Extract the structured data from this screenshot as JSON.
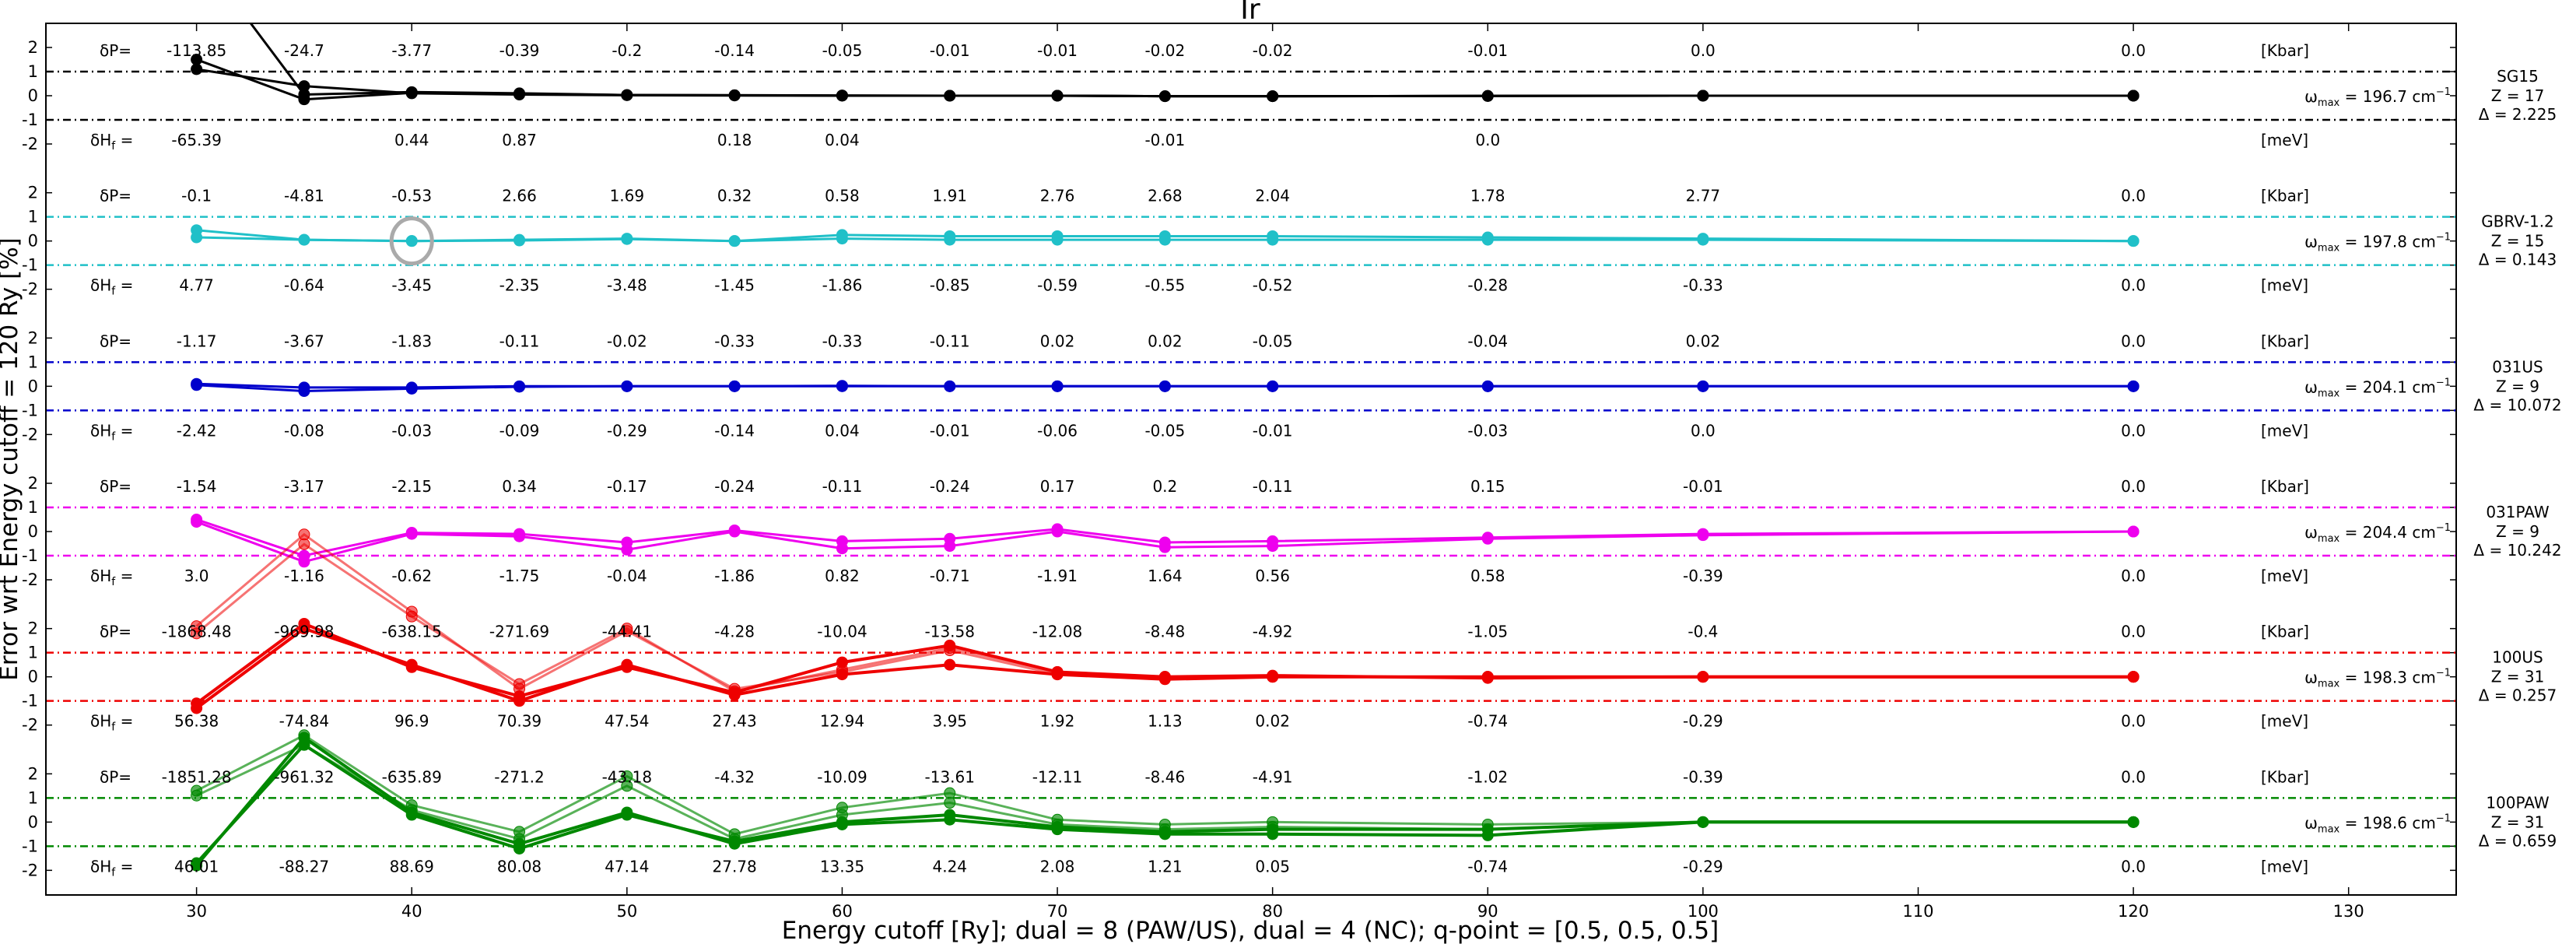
{
  "chart_data": {
    "type": "line",
    "title": "Ir",
    "xlabel": "Energy cutoff [Ry]; dual = 8 (PAW/US), dual = 4 (NC); q-point = [0.5, 0.5, 0.5]",
    "ylabel": "Error wrt Energy cutoff = 120 Ry [%]",
    "xlim": [
      23,
      135
    ],
    "x_ticks": [
      30,
      40,
      50,
      60,
      70,
      80,
      90,
      100,
      110,
      120,
      130
    ],
    "x": [
      30,
      35,
      40,
      45,
      50,
      55,
      60,
      65,
      70,
      75,
      80,
      90,
      100,
      120
    ],
    "panel_ylim": [
      -3,
      3
    ],
    "y_ticks": [
      2,
      1,
      0,
      -1,
      -2
    ],
    "y_tick_labels": [
      "2",
      "1",
      "0",
      "-1",
      "-2"
    ],
    "thresholds": [
      1,
      -1
    ],
    "dp_label": "δP=",
    "dh_label": "δH",
    "dh_sub": "f",
    "dh_eq": " =",
    "dp_unit": "[Kbar]",
    "dh_unit": "[meV]",
    "omega_symbol": "ω",
    "omega_sub": "max",
    "omega_unit": "cm",
    "omega_exp": "−1",
    "grid": false,
    "highlight": {
      "panel": 1,
      "x": 40,
      "y": 0
    },
    "panels": [
      {
        "name": "SG15",
        "z": "Z = 17",
        "delta": "Δ = 2.225",
        "color": "#000000",
        "threshold_color": "#000000",
        "omega": "= 196.7",
        "dp": [
          "-113.85",
          "-24.7",
          "-3.77",
          "-0.39",
          "-0.2",
          "-0.14",
          "-0.05",
          "-0.01",
          "-0.01",
          "-0.02",
          "-0.02",
          "-0.01",
          "0.0",
          "0.0"
        ],
        "dh": [
          "-65.39",
          "",
          "0.44",
          "0.87",
          "",
          "0.18",
          "0.04",
          "",
          "",
          "-0.01",
          "",
          "0.0",
          "",
          ""
        ],
        "series": [
          {
            "alpha": 1.0,
            "width": 3,
            "values": [
              1.1,
              0.4,
              0.1,
              0.05,
              0.02,
              0.01,
              0.0,
              0.0,
              0.0,
              -0.02,
              -0.02,
              -0.01,
              0.0,
              0.0
            ]
          },
          {
            "alpha": 1.0,
            "width": 3,
            "values": [
              1.5,
              -0.15,
              0.12,
              0.08,
              0.03,
              0.02,
              0.01,
              0.0,
              0.0,
              -0.02,
              -0.02,
              -0.01,
              0.0,
              0.0
            ]
          },
          {
            "alpha": 1.0,
            "width": 3,
            "values": [
              6.0,
              0.05,
              0.15,
              0.1,
              0.03,
              0.02,
              0.01,
              0.0,
              0.0,
              -0.02,
              -0.02,
              -0.01,
              0.0,
              0.0
            ]
          }
        ]
      },
      {
        "name": "GBRV-1.2",
        "z": "Z = 15",
        "delta": "Δ = 0.143",
        "color": "#20c0c8",
        "threshold_color": "#20c0c8",
        "omega": "= 197.8",
        "dp": [
          "-0.1",
          "-4.81",
          "-0.53",
          "2.66",
          "1.69",
          "0.32",
          "0.58",
          "1.91",
          "2.76",
          "2.68",
          "2.04",
          "1.78",
          "2.77",
          "0.0"
        ],
        "dh": [
          "4.77",
          "-0.64",
          "-3.45",
          "-2.35",
          "-3.48",
          "-1.45",
          "-1.86",
          "-0.85",
          "-0.59",
          "-0.55",
          "-0.52",
          "-0.28",
          "-0.33",
          "0.0"
        ],
        "series": [
          {
            "alpha": 1.0,
            "width": 3,
            "values": [
              0.45,
              0.05,
              0.0,
              0.05,
              0.1,
              0.0,
              0.25,
              0.2,
              0.2,
              0.2,
              0.2,
              0.15,
              0.1,
              0.0
            ]
          },
          {
            "alpha": 1.0,
            "width": 3,
            "values": [
              0.15,
              0.05,
              0.0,
              0.02,
              0.08,
              0.0,
              0.1,
              0.05,
              0.05,
              0.05,
              0.05,
              0.05,
              0.05,
              0.0
            ]
          }
        ]
      },
      {
        "name": "031US",
        "z": "Z = 9",
        "delta": "Δ = 10.072",
        "color": "#0000cc",
        "threshold_color": "#0000cc",
        "omega": "= 204.1",
        "dp": [
          "-1.17",
          "-3.67",
          "-1.83",
          "-0.11",
          "-0.02",
          "-0.33",
          "-0.33",
          "-0.11",
          "0.02",
          "0.02",
          "-0.05",
          "-0.04",
          "0.02",
          "0.0"
        ],
        "dh": [
          "-2.42",
          "-0.08",
          "-0.03",
          "-0.09",
          "-0.29",
          "-0.14",
          "0.04",
          "-0.01",
          "-0.06",
          "-0.05",
          "-0.01",
          "-0.03",
          "0.0",
          "0.0"
        ],
        "series": [
          {
            "alpha": 1.0,
            "width": 3,
            "values": [
              0.1,
              -0.05,
              -0.05,
              0.0,
              0.0,
              0.0,
              0.02,
              0.0,
              0.0,
              0.0,
              0.0,
              0.0,
              0.0,
              0.0
            ]
          },
          {
            "alpha": 1.0,
            "width": 3,
            "values": [
              0.05,
              -0.2,
              -0.1,
              -0.02,
              0.0,
              0.0,
              0.0,
              0.0,
              0.0,
              0.0,
              0.0,
              0.0,
              0.0,
              0.0
            ]
          }
        ]
      },
      {
        "name": "031PAW",
        "z": "Z = 9",
        "delta": "Δ = 10.242",
        "color": "#ee00ee",
        "threshold_color": "#ee00ee",
        "omega": "= 204.4",
        "dp": [
          "-1.54",
          "-3.17",
          "-2.15",
          "0.34",
          "-0.17",
          "-0.24",
          "-0.11",
          "-0.24",
          "0.17",
          "0.2",
          "-0.11",
          "0.15",
          "-0.01",
          "0.0"
        ],
        "dh": [
          "3.0",
          "-1.16",
          "-0.62",
          "-1.75",
          "-0.04",
          "-1.86",
          "0.82",
          "-0.71",
          "-1.91",
          "1.64",
          "0.56",
          "0.58",
          "-0.39",
          "0.0"
        ],
        "series": [
          {
            "alpha": 1.0,
            "width": 3,
            "values": [
              0.5,
              -1.0,
              -0.05,
              -0.1,
              -0.45,
              0.05,
              -0.4,
              -0.3,
              0.1,
              -0.45,
              -0.4,
              -0.25,
              -0.1,
              0.0
            ]
          },
          {
            "alpha": 1.0,
            "width": 3,
            "values": [
              0.4,
              -1.25,
              -0.1,
              -0.2,
              -0.75,
              0.0,
              -0.7,
              -0.6,
              0.0,
              -0.65,
              -0.6,
              -0.3,
              -0.15,
              0.0
            ]
          }
        ]
      },
      {
        "name": "100US",
        "z": "Z = 31",
        "delta": "Δ = 0.257",
        "color": "#ee0000",
        "threshold_color": "#ee0000",
        "omega": "= 198.3",
        "dp": [
          "-1868.48",
          "-969.98",
          "-638.15",
          "-271.69",
          "-44.41",
          "-4.28",
          "-10.04",
          "-13.58",
          "-12.08",
          "-8.48",
          "-4.92",
          "-1.05",
          "-0.4",
          "0.0"
        ],
        "dh": [
          "56.38",
          "-74.84",
          "96.9",
          "70.39",
          "47.54",
          "27.43",
          "12.94",
          "3.95",
          "1.92",
          "1.13",
          "0.02",
          "-0.74",
          "-0.29",
          "0.0"
        ],
        "series": [
          {
            "alpha": 0.55,
            "width": 3,
            "values": [
              1.8,
              5.5,
              2.5,
              -0.3,
              2.0,
              -0.6,
              0.3,
              1.2,
              0.2,
              0.0,
              0.0,
              0.0,
              0.0,
              0.0
            ]
          },
          {
            "alpha": 0.55,
            "width": 3,
            "values": [
              2.1,
              5.9,
              2.7,
              -0.5,
              1.9,
              -0.5,
              0.2,
              1.1,
              0.1,
              0.0,
              0.0,
              0.0,
              0.0,
              0.0
            ]
          },
          {
            "alpha": 1.0,
            "width": 4,
            "values": [
              -1.3,
              2.0,
              0.5,
              -1.0,
              0.5,
              -0.75,
              0.1,
              0.5,
              0.1,
              -0.1,
              0.0,
              0.0,
              0.0,
              0.0
            ]
          },
          {
            "alpha": 1.0,
            "width": 4,
            "values": [
              -1.1,
              2.2,
              0.4,
              -0.8,
              0.4,
              -0.65,
              0.6,
              1.3,
              0.2,
              0.0,
              0.05,
              -0.05,
              0.0,
              0.0
            ]
          }
        ]
      },
      {
        "name": "100PAW",
        "z": "Z = 31",
        "delta": "Δ = 0.659",
        "color": "#008800",
        "threshold_color": "#008800",
        "omega": "= 198.6",
        "dp": [
          "-1851.28",
          "-961.32",
          "-635.89",
          "-271.2",
          "-43.18",
          "-4.32",
          "-10.09",
          "-13.61",
          "-12.11",
          "-8.46",
          "-4.91",
          "-1.02",
          "-0.39",
          "0.0"
        ],
        "dh": [
          "46.01",
          "-88.27",
          "88.69",
          "80.08",
          "47.14",
          "27.78",
          "13.35",
          "4.24",
          "2.08",
          "1.21",
          "0.05",
          "-0.74",
          "-0.29",
          "0.0"
        ],
        "series": [
          {
            "alpha": 0.65,
            "width": 3,
            "values": [
              1.3,
              3.6,
              0.7,
              -0.4,
              1.9,
              -0.5,
              0.6,
              1.2,
              0.1,
              -0.1,
              0.0,
              -0.1,
              0.0,
              0.0
            ]
          },
          {
            "alpha": 0.65,
            "width": 3,
            "values": [
              1.1,
              3.2,
              0.5,
              -0.7,
              1.5,
              -0.7,
              0.3,
              0.8,
              -0.1,
              -0.3,
              -0.2,
              -0.3,
              0.0,
              0.0
            ]
          },
          {
            "alpha": 1.0,
            "width": 4,
            "values": [
              -1.7,
              3.2,
              0.3,
              -1.1,
              0.3,
              -0.8,
              0.0,
              0.3,
              -0.2,
              -0.4,
              -0.3,
              -0.3,
              0.0,
              0.0
            ]
          },
          {
            "alpha": 1.0,
            "width": 4,
            "values": [
              -1.8,
              3.5,
              0.4,
              -0.9,
              0.4,
              -0.9,
              -0.1,
              0.1,
              -0.3,
              -0.5,
              -0.5,
              -0.55,
              0.0,
              0.0
            ]
          }
        ]
      }
    ]
  }
}
